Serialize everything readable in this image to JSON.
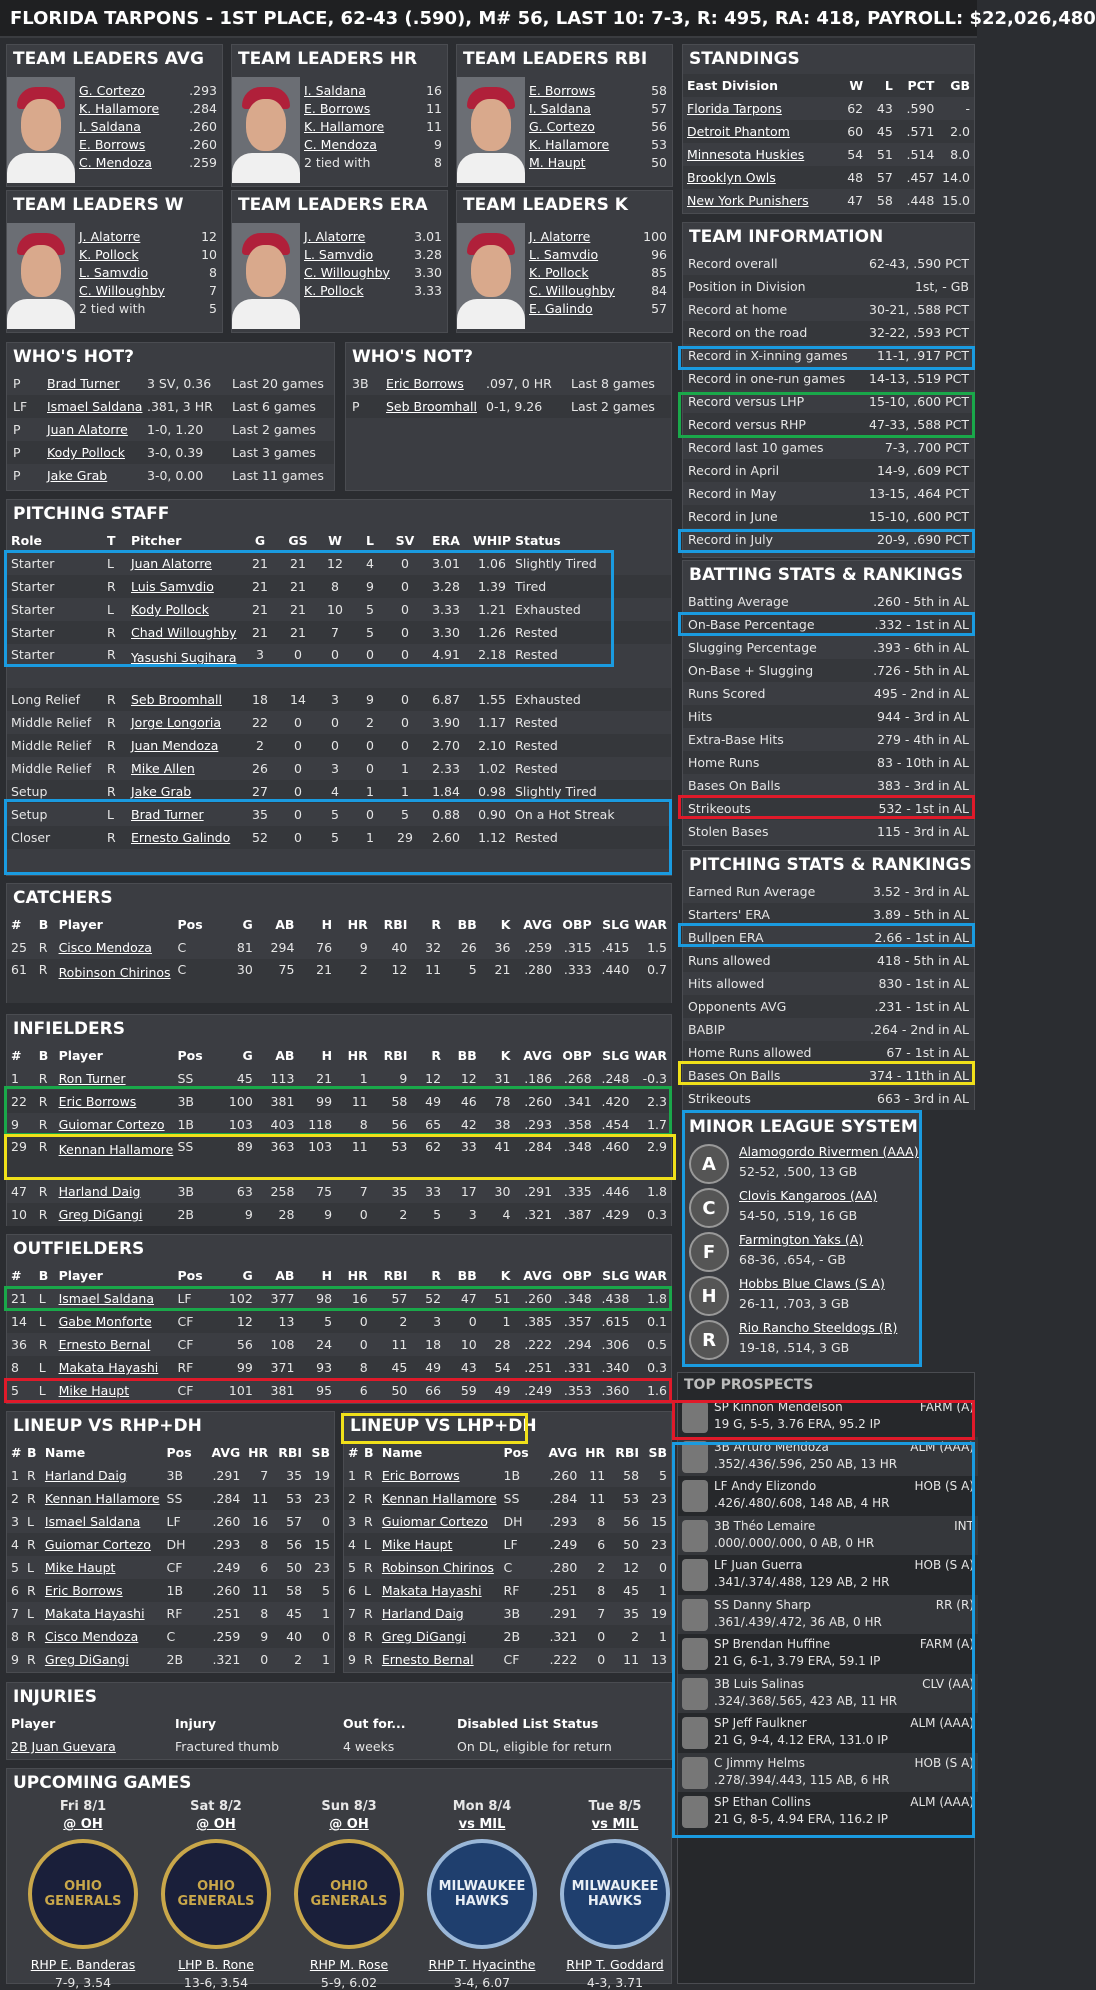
{
  "title": "FLORIDA TARPONS - 1ST PLACE, 62-43 (.590), M# 56, LAST 10: 7-3, R: 495, RA: 418, PAYROLL: $22,026,480",
  "leaders": {
    "avg": {
      "title": "TEAM LEADERS AVG",
      "rows": [
        [
          "G. Cortezo",
          ".293"
        ],
        [
          "K. Hallamore",
          ".284"
        ],
        [
          "I. Saldana",
          ".260"
        ],
        [
          "E. Borrows",
          ".260"
        ],
        [
          "C. Mendoza",
          ".259"
        ]
      ]
    },
    "hr": {
      "title": "TEAM LEADERS HR",
      "rows": [
        [
          "I. Saldana",
          "16"
        ],
        [
          "E. Borrows",
          "11"
        ],
        [
          "K. Hallamore",
          "11"
        ],
        [
          "C. Mendoza",
          "9"
        ],
        [
          "2 tied with",
          "8"
        ]
      ]
    },
    "rbi": {
      "title": "TEAM LEADERS RBI",
      "rows": [
        [
          "E. Borrows",
          "58"
        ],
        [
          "I. Saldana",
          "57"
        ],
        [
          "G. Cortezo",
          "56"
        ],
        [
          "K. Hallamore",
          "53"
        ],
        [
          "M. Haupt",
          "50"
        ]
      ]
    },
    "w": {
      "title": "TEAM LEADERS W",
      "rows": [
        [
          "J. Alatorre",
          "12"
        ],
        [
          "K. Pollock",
          "10"
        ],
        [
          "L. Samvdio",
          "8"
        ],
        [
          "C. Willoughby",
          "7"
        ],
        [
          "2 tied with",
          "5"
        ]
      ]
    },
    "era": {
      "title": "TEAM LEADERS ERA",
      "rows": [
        [
          "J. Alatorre",
          "3.01"
        ],
        [
          "L. Samvdio",
          "3.28"
        ],
        [
          "C. Willoughby",
          "3.30"
        ],
        [
          "K. Pollock",
          "3.33"
        ]
      ]
    },
    "k": {
      "title": "TEAM LEADERS K",
      "rows": [
        [
          "J. Alatorre",
          "100"
        ],
        [
          "L. Samvdio",
          "96"
        ],
        [
          "K. Pollock",
          "85"
        ],
        [
          "C. Willoughby",
          "84"
        ],
        [
          "E. Galindo",
          "57"
        ]
      ]
    }
  },
  "hot": {
    "title": "WHO'S HOT?",
    "rows": [
      [
        "P",
        "Brad Turner",
        "3 SV, 0.36",
        "Last 20 games"
      ],
      [
        "LF",
        "Ismael Saldana",
        ".381, 3 HR",
        "Last 6 games"
      ],
      [
        "P",
        "Juan Alatorre",
        "1-0, 1.20",
        "Last 2 games"
      ],
      [
        "P",
        "Kody Pollock",
        "3-0, 0.39",
        "Last 3 games"
      ],
      [
        "P",
        "Jake Grab",
        "3-0, 0.00",
        "Last 11 games"
      ]
    ]
  },
  "not": {
    "title": "WHO'S NOT?",
    "rows": [
      [
        "3B",
        "Eric Borrows",
        ".097, 0 HR",
        "Last 8 games"
      ],
      [
        "P",
        "Seb Broomhall",
        "0-1, 9.26",
        "Last 2 games"
      ]
    ]
  },
  "pitching": {
    "title": "PITCHING STAFF",
    "headers": [
      "Role",
      "T",
      "Pitcher",
      "G",
      "GS",
      "W",
      "L",
      "SV",
      "ERA",
      "WHIP",
      "Status"
    ],
    "rows": [
      [
        "Starter",
        "L",
        "Juan Alatorre",
        "21",
        "21",
        "12",
        "4",
        "0",
        "3.01",
        "1.06",
        "Slightly Tired"
      ],
      [
        "Starter",
        "R",
        "Luis Samvdio",
        "21",
        "21",
        "8",
        "9",
        "0",
        "3.28",
        "1.39",
        "Tired"
      ],
      [
        "Starter",
        "L",
        "Kody Pollock",
        "21",
        "21",
        "10",
        "5",
        "0",
        "3.33",
        "1.21",
        "Exhausted"
      ],
      [
        "Starter",
        "R",
        "Chad Willoughby",
        "21",
        "21",
        "7",
        "5",
        "0",
        "3.30",
        "1.26",
        "Rested"
      ],
      [
        "Starter",
        "R",
        "Yasushi Sugihara",
        "3",
        "0",
        "0",
        "0",
        "0",
        "4.91",
        "2.18",
        "Rested"
      ],
      [
        "Long Relief",
        "R",
        "Seb Broomhall",
        "18",
        "14",
        "3",
        "9",
        "0",
        "6.87",
        "1.55",
        "Exhausted"
      ],
      [
        "Middle Relief",
        "R",
        "Jorge Longoria",
        "22",
        "0",
        "0",
        "2",
        "0",
        "3.90",
        "1.17",
        "Rested"
      ],
      [
        "Middle Relief",
        "R",
        "Juan Mendoza",
        "2",
        "0",
        "0",
        "0",
        "0",
        "2.70",
        "2.10",
        "Rested"
      ],
      [
        "Middle Relief",
        "R",
        "Mike Allen",
        "26",
        "0",
        "3",
        "0",
        "1",
        "2.33",
        "1.02",
        "Rested"
      ],
      [
        "Setup",
        "R",
        "Jake Grab",
        "27",
        "0",
        "4",
        "1",
        "1",
        "1.84",
        "0.98",
        "Slightly Tired"
      ],
      [
        "Setup",
        "L",
        "Brad Turner",
        "35",
        "0",
        "5",
        "0",
        "5",
        "0.88",
        "0.90",
        "On a Hot Streak"
      ],
      [
        "Closer",
        "R",
        "Ernesto Galindo",
        "52",
        "0",
        "5",
        "1",
        "29",
        "2.60",
        "1.12",
        "Rested"
      ]
    ]
  },
  "batting_headers": [
    "#",
    "B",
    "Player",
    "Pos",
    "G",
    "AB",
    "H",
    "HR",
    "RBI",
    "R",
    "BB",
    "K",
    "AVG",
    "OBP",
    "SLG",
    "WAR"
  ],
  "catchers": {
    "title": "CATCHERS",
    "rows": [
      [
        "25",
        "R",
        "Cisco Mendoza",
        "C",
        "81",
        "294",
        "76",
        "9",
        "40",
        "32",
        "26",
        "36",
        ".259",
        ".315",
        ".415",
        "1.5"
      ],
      [
        "61",
        "R",
        "Robinson Chirinos",
        "C",
        "30",
        "75",
        "21",
        "2",
        "12",
        "11",
        "5",
        "21",
        ".280",
        ".333",
        ".440",
        "0.7"
      ]
    ]
  },
  "infielders": {
    "title": "INFIELDERS",
    "rows": [
      [
        "1",
        "R",
        "Ron Turner",
        "SS",
        "45",
        "113",
        "21",
        "1",
        "9",
        "12",
        "12",
        "31",
        ".186",
        ".268",
        ".248",
        "-0.3"
      ],
      [
        "22",
        "R",
        "Eric Borrows",
        "3B",
        "100",
        "381",
        "99",
        "11",
        "58",
        "49",
        "46",
        "78",
        ".260",
        ".341",
        ".420",
        "2.3"
      ],
      [
        "9",
        "R",
        "Guiomar Cortezo",
        "1B",
        "103",
        "403",
        "118",
        "8",
        "56",
        "65",
        "42",
        "38",
        ".293",
        ".358",
        ".454",
        "1.7"
      ],
      [
        "29",
        "R",
        "Kennan Hallamore",
        "SS",
        "89",
        "363",
        "103",
        "11",
        "53",
        "62",
        "33",
        "41",
        ".284",
        ".348",
        ".460",
        "2.9"
      ],
      [
        "47",
        "R",
        "Harland Daig",
        "3B",
        "63",
        "258",
        "75",
        "7",
        "35",
        "33",
        "17",
        "30",
        ".291",
        ".335",
        ".446",
        "1.8"
      ],
      [
        "10",
        "R",
        "Greg DiGangi",
        "2B",
        "9",
        "28",
        "9",
        "0",
        "2",
        "5",
        "3",
        "4",
        ".321",
        ".387",
        ".429",
        "0.3"
      ]
    ]
  },
  "outfielders": {
    "title": "OUTFIELDERS",
    "rows": [
      [
        "21",
        "L",
        "Ismael Saldana",
        "LF",
        "102",
        "377",
        "98",
        "16",
        "57",
        "52",
        "47",
        "51",
        ".260",
        ".348",
        ".438",
        "1.8"
      ],
      [
        "14",
        "L",
        "Gabe Monforte",
        "CF",
        "12",
        "13",
        "5",
        "0",
        "2",
        "3",
        "0",
        "1",
        ".385",
        ".357",
        ".615",
        "0.1"
      ],
      [
        "36",
        "R",
        "Ernesto Bernal",
        "CF",
        "56",
        "108",
        "24",
        "0",
        "11",
        "18",
        "10",
        "28",
        ".222",
        ".294",
        ".306",
        "0.5"
      ],
      [
        "8",
        "L",
        "Makata Hayashi",
        "RF",
        "99",
        "371",
        "93",
        "8",
        "45",
        "49",
        "43",
        "54",
        ".251",
        ".331",
        ".340",
        "0.3"
      ],
      [
        "5",
        "L",
        "Mike Haupt",
        "CF",
        "101",
        "381",
        "95",
        "6",
        "50",
        "66",
        "59",
        "49",
        ".249",
        ".353",
        ".360",
        "1.6"
      ]
    ]
  },
  "lineup_headers": [
    "#",
    "B",
    "Name",
    "Pos",
    "AVG",
    "HR",
    "RBI",
    "SB"
  ],
  "lineup_rhp": {
    "title": "LINEUP VS RHP+DH",
    "rows": [
      [
        "1",
        "R",
        "Harland Daig",
        "3B",
        ".291",
        "7",
        "35",
        "19"
      ],
      [
        "2",
        "R",
        "Kennan Hallamore",
        "SS",
        ".284",
        "11",
        "53",
        "23"
      ],
      [
        "3",
        "L",
        "Ismael Saldana",
        "LF",
        ".260",
        "16",
        "57",
        "0"
      ],
      [
        "4",
        "R",
        "Guiomar Cortezo",
        "DH",
        ".293",
        "8",
        "56",
        "15"
      ],
      [
        "5",
        "L",
        "Mike Haupt",
        "CF",
        ".249",
        "6",
        "50",
        "23"
      ],
      [
        "6",
        "R",
        "Eric Borrows",
        "1B",
        ".260",
        "11",
        "58",
        "5"
      ],
      [
        "7",
        "L",
        "Makata Hayashi",
        "RF",
        ".251",
        "8",
        "45",
        "1"
      ],
      [
        "8",
        "R",
        "Cisco Mendoza",
        "C",
        ".259",
        "9",
        "40",
        "0"
      ],
      [
        "9",
        "R",
        "Greg DiGangi",
        "2B",
        ".321",
        "0",
        "2",
        "1"
      ]
    ]
  },
  "lineup_lhp": {
    "title": "LINEUP VS LHP+DH",
    "rows": [
      [
        "1",
        "R",
        "Eric Borrows",
        "1B",
        ".260",
        "11",
        "58",
        "5"
      ],
      [
        "2",
        "R",
        "Kennan Hallamore",
        "SS",
        ".284",
        "11",
        "53",
        "23"
      ],
      [
        "3",
        "R",
        "Guiomar Cortezo",
        "DH",
        ".293",
        "8",
        "56",
        "15"
      ],
      [
        "4",
        "L",
        "Mike Haupt",
        "LF",
        ".249",
        "6",
        "50",
        "23"
      ],
      [
        "5",
        "R",
        "Robinson Chirinos",
        "C",
        ".280",
        "2",
        "12",
        "0"
      ],
      [
        "6",
        "L",
        "Makata Hayashi",
        "RF",
        ".251",
        "8",
        "45",
        "1"
      ],
      [
        "7",
        "R",
        "Harland Daig",
        "3B",
        ".291",
        "7",
        "35",
        "19"
      ],
      [
        "8",
        "R",
        "Greg DiGangi",
        "2B",
        ".321",
        "0",
        "2",
        "1"
      ],
      [
        "9",
        "R",
        "Ernesto Bernal",
        "CF",
        ".222",
        "0",
        "11",
        "13"
      ]
    ]
  },
  "injuries": {
    "title": "INJURIES",
    "headers": [
      "Player",
      "Injury",
      "Out for...",
      "Disabled List Status"
    ],
    "rows": [
      [
        "2B Juan Guevara",
        "Fractured thumb",
        "4 weeks",
        "On DL, eligible for return"
      ]
    ]
  },
  "upcoming": {
    "title": "UPCOMING GAMES",
    "games": [
      {
        "date": "Fri 8/1",
        "opp": "@ OH",
        "logo": "OHIO GENERALS",
        "pitcher": "RHP E. Banderas",
        "rec": "7-9, 3.54"
      },
      {
        "date": "Sat 8/2",
        "opp": "@ OH",
        "logo": "OHIO GENERALS",
        "pitcher": "LHP B. Rone",
        "rec": "13-6, 3.54"
      },
      {
        "date": "Sun 8/3",
        "opp": "@ OH",
        "logo": "OHIO GENERALS",
        "pitcher": "RHP M. Rose",
        "rec": "5-9, 6.02"
      },
      {
        "date": "Mon 8/4",
        "opp": "vs MIL",
        "logo": "MILWAUKEE HAWKS",
        "pitcher": "RHP T. Hyacinthe",
        "rec": "3-4, 6.07"
      },
      {
        "date": "Tue 8/5",
        "opp": "vs MIL",
        "logo": "MILWAUKEE HAWKS",
        "pitcher": "RHP T. Goddard",
        "rec": "4-3, 3.71"
      }
    ]
  },
  "standings": {
    "title": "STANDINGS",
    "headers": [
      "East Division",
      "W",
      "L",
      "PCT",
      "GB"
    ],
    "rows": [
      [
        "Florida Tarpons",
        "62",
        "43",
        ".590",
        "-"
      ],
      [
        "Detroit Phantom",
        "60",
        "45",
        ".571",
        "2.0"
      ],
      [
        "Minnesota Huskies",
        "54",
        "51",
        ".514",
        "8.0"
      ],
      [
        "Brooklyn Owls",
        "48",
        "57",
        ".457",
        "14.0"
      ],
      [
        "New York Punishers",
        "47",
        "58",
        ".448",
        "15.0"
      ]
    ]
  },
  "teaminfo": {
    "title": "TEAM INFORMATION",
    "rows": [
      [
        "Record overall",
        "62-43, .590 PCT"
      ],
      [
        "Position in Division",
        "1st, - GB"
      ],
      [
        "Record at home",
        "30-21, .588 PCT"
      ],
      [
        "Record on the road",
        "32-22, .593 PCT"
      ],
      [
        "Record in X-inning games",
        "11-1, .917 PCT"
      ],
      [
        "Record in one-run games",
        "14-13, .519 PCT"
      ],
      [
        "Record versus LHP",
        "15-10, .600 PCT"
      ],
      [
        "Record versus RHP",
        "47-33, .588 PCT"
      ],
      [
        "Record last 10 games",
        "7-3, .700 PCT"
      ],
      [
        "Record in April",
        "14-9, .609 PCT"
      ],
      [
        "Record in May",
        "13-15, .464 PCT"
      ],
      [
        "Record in June",
        "15-10, .600 PCT"
      ],
      [
        "Record in July",
        "20-9, .690 PCT"
      ]
    ]
  },
  "batrank": {
    "title": "BATTING STATS & RANKINGS",
    "rows": [
      [
        "Batting Average",
        ".260 - 5th in AL"
      ],
      [
        "On-Base Percentage",
        ".332 - 1st in AL"
      ],
      [
        "Slugging Percentage",
        ".393 - 6th in AL"
      ],
      [
        "On-Base + Slugging",
        ".726 - 5th in AL"
      ],
      [
        "Runs Scored",
        "495 - 2nd in AL"
      ],
      [
        "Hits",
        "944 - 3rd in AL"
      ],
      [
        "Extra-Base Hits",
        "279 - 4th in AL"
      ],
      [
        "Home Runs",
        "83 - 10th in AL"
      ],
      [
        "Bases On Balls",
        "383 - 3rd in AL"
      ],
      [
        "Strikeouts",
        "532 - 1st in AL"
      ],
      [
        "Stolen Bases",
        "115 - 3rd in AL"
      ]
    ]
  },
  "pitrank": {
    "title": "PITCHING STATS & RANKINGS",
    "rows": [
      [
        "Earned Run Average",
        "3.52 - 3rd in AL"
      ],
      [
        "Starters' ERA",
        "3.89 - 5th in AL"
      ],
      [
        "Bullpen ERA",
        "2.66 - 1st in AL"
      ],
      [
        "Runs allowed",
        "418 - 5th in AL"
      ],
      [
        "Hits allowed",
        "830 - 1st in AL"
      ],
      [
        "Opponents AVG",
        ".231 - 1st in AL"
      ],
      [
        "BABIP",
        ".264 - 2nd in AL"
      ],
      [
        "Home Runs allowed",
        "67 - 1st in AL"
      ],
      [
        "Bases On Balls",
        "374 - 11th in AL"
      ],
      [
        "Strikeouts",
        "663 - 3rd in AL"
      ]
    ]
  },
  "minors": {
    "title": "MINOR LEAGUE SYSTEM",
    "rows": [
      [
        "A",
        "Alamogordo Rivermen (AAA)",
        "52-52, .500, 13 GB"
      ],
      [
        "C",
        "Clovis Kangaroos (AA)",
        "54-50, .519, 16 GB"
      ],
      [
        "F",
        "Farmington Yaks (A)",
        "68-36, .654, - GB"
      ],
      [
        "H",
        "Hobbs Blue Claws (S A)",
        "26-11, .703, 3 GB"
      ],
      [
        "R",
        "Rio Rancho Steeldogs (R)",
        "19-18, .514, 3 GB"
      ]
    ]
  },
  "prospects": {
    "title": "TOP PROSPECTS",
    "rows": [
      [
        "SP Kinnon Mendelson",
        "FARM (A)",
        "19 G, 5-5, 3.76 ERA, 95.2 IP"
      ],
      [
        "3B Arturo Mendoza",
        "ALM (AAA)",
        ".352/.436/.596, 250 AB, 13 HR"
      ],
      [
        "LF Andy Elizondo",
        "HOB (S A)",
        ".426/.480/.608, 148 AB, 4 HR"
      ],
      [
        "3B Théo Lemaire",
        "INT",
        ".000/.000/.000, 0 AB, 0 HR"
      ],
      [
        "LF Juan Guerra",
        "HOB (S A)",
        ".341/.374/.488, 129 AB, 2 HR"
      ],
      [
        "SS Danny Sharp",
        "RR (R)",
        ".361/.439/.472, 36 AB, 0 HR"
      ],
      [
        "SP Brendan Huffine",
        "FARM (A)",
        "21 G, 6-1, 3.79 ERA, 59.1 IP"
      ],
      [
        "3B Luis Salinas",
        "CLV (AA)",
        ".324/.368/.565, 423 AB, 11 HR"
      ],
      [
        "SP Jeff Faulkner",
        "ALM (AAA)",
        "21 G, 9-4, 4.12 ERA, 131.0 IP"
      ],
      [
        "C Jimmy Helms",
        "HOB (S A)",
        ".278/.394/.443, 115 AB, 6 HR"
      ],
      [
        "SP Ethan Collins",
        "ALM (AAA)",
        "21 G, 8-5, 4.94 ERA, 116.2 IP"
      ]
    ]
  },
  "colors": {
    "highlight_blue": "#1a9be0",
    "highlight_green": "#1aa84a",
    "highlight_yellow": "#f0e01a",
    "highlight_red": "#e01a2a"
  }
}
